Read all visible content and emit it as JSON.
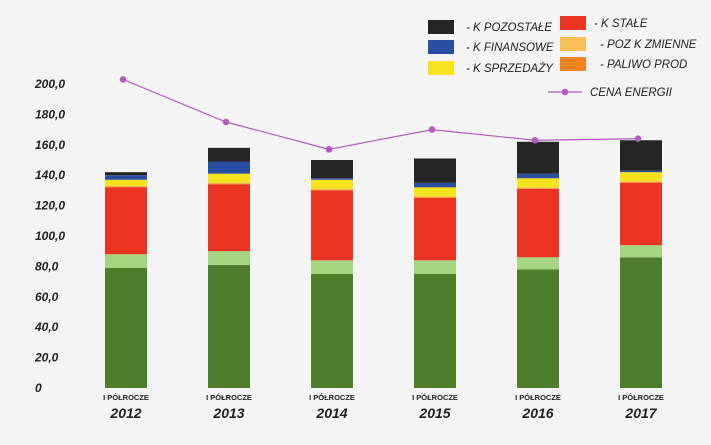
{
  "chart_data": {
    "type": "bar",
    "stacked": true,
    "title": "",
    "xlabel": "",
    "ylabel": "",
    "ylim": [
      0,
      200
    ],
    "yticks": [
      "0",
      "20,0",
      "40,0",
      "60,0",
      "80,0",
      "100,0",
      "120,0",
      "140,0",
      "160,0",
      "180,0",
      "200,0"
    ],
    "grid": false,
    "legend_position": "top-right",
    "categories": [
      {
        "sub": "I PÓŁROCZE",
        "year": "2012"
      },
      {
        "sub": "I PÓŁROCZE",
        "year": "2013"
      },
      {
        "sub": "I PÓŁROCZE",
        "year": "2014"
      },
      {
        "sub": "I PÓŁROCZE",
        "year": "2015"
      },
      {
        "sub": "I PÓŁROCZE",
        "year": "2016"
      },
      {
        "sub": "I PÓŁROCZE",
        "year": "2017"
      }
    ],
    "series": [
      {
        "name": "",
        "color": "#4e7d2c",
        "values": [
          79,
          81,
          75,
          75,
          78,
          86
        ]
      },
      {
        "name": "",
        "color": "#a6d581",
        "values": [
          9,
          9,
          9,
          9,
          8,
          8
        ]
      },
      {
        "name": "- K STAŁE",
        "color": "#ec3423",
        "values": [
          44,
          44,
          46,
          41,
          45,
          41
        ]
      },
      {
        "name": "- PALIWO PROD",
        "color": "#f0841f",
        "values": [
          0.5,
          0.5,
          0.5,
          0.5,
          0.5,
          0.5
        ]
      },
      {
        "name": "- POZ K ZMIENNE",
        "color": "#f7bf58",
        "values": [
          0.5,
          0.5,
          0.5,
          0.5,
          0.5,
          0.5
        ]
      },
      {
        "name": "- K SPRZEDAŻY",
        "color": "#f6e31c",
        "values": [
          4,
          6,
          6,
          6,
          6,
          6
        ]
      },
      {
        "name": "- K FINANSOWE",
        "color": "#2a4ea2",
        "values": [
          3,
          8,
          1,
          3,
          3,
          1
        ]
      },
      {
        "name": "- K POZOSTAŁE",
        "color": "#252525",
        "values": [
          2,
          9,
          12,
          16,
          21,
          20
        ]
      }
    ],
    "line_series": {
      "name": "CENA ENERGII",
      "color": "#b35abf",
      "values": [
        203,
        175,
        157,
        170,
        163,
        164
      ]
    },
    "legend": [
      {
        "label": "- K POZOSTAŁE",
        "color": "#252525",
        "kind": "box"
      },
      {
        "label": "- K FINANSOWE",
        "color": "#2a4ea2",
        "kind": "box"
      },
      {
        "label": "- K SPRZEDAŻY",
        "color": "#f6e31c",
        "kind": "box"
      },
      {
        "label": "- K STAŁE",
        "color": "#ec3423",
        "kind": "box"
      },
      {
        "label": "- POZ K ZMIENNE",
        "color": "#f7bf58",
        "kind": "box"
      },
      {
        "label": "- PALIWO PROD",
        "color": "#f0841f",
        "kind": "box"
      },
      {
        "label": "CENA ENERGII",
        "color": "#b35abf",
        "kind": "line"
      }
    ]
  }
}
